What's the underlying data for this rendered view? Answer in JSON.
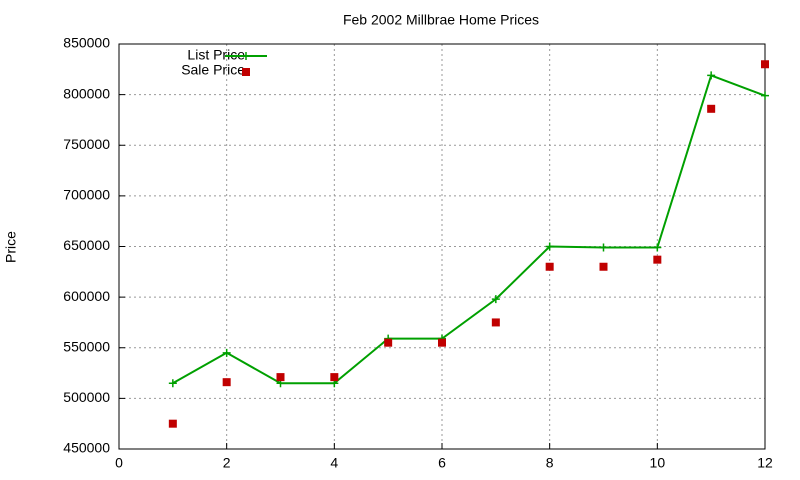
{
  "chart_data": {
    "type": "line",
    "title": "Feb 2002 Millbrae Home Prices",
    "y_label": "Price",
    "x": [
      1,
      2,
      3,
      4,
      5,
      6,
      7,
      8,
      9,
      10,
      11,
      12
    ],
    "series": [
      {
        "name": "List Price",
        "color": "#00a000",
        "style": "lines+points",
        "values": [
          515000,
          545000,
          515000,
          515000,
          559000,
          559000,
          598000,
          650000,
          649000,
          649000,
          819000,
          799000
        ]
      },
      {
        "name": "Sale Price",
        "color": "#c00000",
        "style": "points",
        "values": [
          475000,
          516000,
          521000,
          521000,
          555000,
          555000,
          575000,
          630000,
          630000,
          637000,
          786000,
          830000
        ]
      }
    ],
    "xlim": [
      0,
      12
    ],
    "xticks": [
      0,
      2,
      4,
      6,
      8,
      10,
      12
    ],
    "ylim": [
      450000,
      850000
    ],
    "yticks": [
      450000,
      500000,
      550000,
      600000,
      650000,
      700000,
      750000,
      800000,
      850000
    ],
    "grid": true,
    "legend": "top-left"
  }
}
